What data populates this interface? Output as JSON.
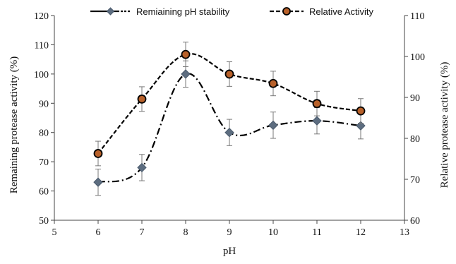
{
  "chart_data": {
    "type": "line",
    "title": "",
    "xlabel": "pH",
    "ylabel_left": "Remaining protease activity (%)",
    "ylabel_right": "Relative protease activity (%)",
    "xlim": [
      5,
      13
    ],
    "ylim_left": [
      50,
      120
    ],
    "ylim_right": [
      60,
      110
    ],
    "x_ticks": [
      "5",
      "6",
      "7",
      "8",
      "9",
      "10",
      "11",
      "12",
      "13"
    ],
    "y_left_ticks": [
      "50",
      "60",
      "70",
      "80",
      "90",
      "100",
      "110",
      "120"
    ],
    "y_right_ticks": [
      "60",
      "70",
      "80",
      "90",
      "100",
      "110"
    ],
    "grid": false,
    "legend_position": "top",
    "series": [
      {
        "name": "Remiaining pH stability",
        "axis": "left",
        "line_style": "dash-dot",
        "marker": "diamond",
        "color": "#5d6d80",
        "x": [
          6,
          7,
          8,
          9,
          10,
          11,
          12
        ],
        "y": [
          63,
          68,
          100,
          80,
          82.5,
          84,
          82.3
        ],
        "error": [
          4.5,
          4.5,
          4.5,
          4.5,
          4.5,
          4.5,
          4.5
        ]
      },
      {
        "name": "Relative Activity",
        "axis": "right",
        "line_style": "dashed",
        "marker": "circle",
        "color": "#b8612a",
        "x": [
          6,
          7,
          8,
          9,
          10,
          11,
          12
        ],
        "y": [
          76.3,
          89.6,
          100.5,
          95.7,
          93.4,
          88.5,
          86.7
        ],
        "error": [
          3.0,
          3.0,
          3.0,
          3.0,
          3.0,
          3.0,
          3.0
        ]
      }
    ]
  }
}
